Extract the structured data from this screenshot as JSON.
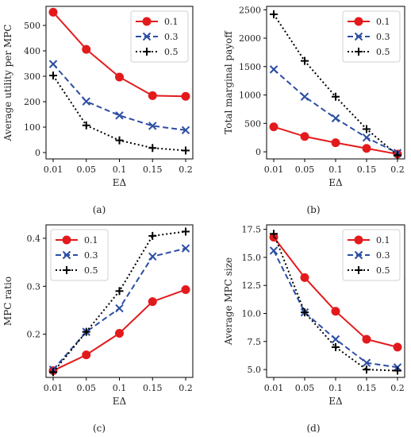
{
  "chart_data": [
    {
      "type": "line",
      "caption": "(a)",
      "xlabel": "EΔ",
      "ylabel": "Average utility per MPC",
      "categories": [
        "0.01",
        "0.05",
        "0.1",
        "0.15",
        "0.2"
      ],
      "yticks": [
        0,
        100,
        200,
        300,
        400,
        500
      ],
      "ylim": [
        -25,
        575
      ],
      "legend_position": "top-right",
      "series": [
        {
          "name": "0.1",
          "color": "#e31a1c",
          "style": "solid",
          "marker": "circle",
          "values": [
            552,
            406,
            297,
            224,
            221
          ]
        },
        {
          "name": "0.3",
          "color": "#2c4ea3",
          "style": "dashed",
          "marker": "x",
          "values": [
            348,
            201,
            146,
            105,
            88
          ]
        },
        {
          "name": "0.5",
          "color": "#000000",
          "style": "dotted",
          "marker": "plus",
          "values": [
            303,
            107,
            48,
            18,
            8
          ]
        }
      ]
    },
    {
      "type": "line",
      "caption": "(b)",
      "xlabel": "EΔ",
      "ylabel": "Total marginal payoff",
      "categories": [
        "0.01",
        "0.05",
        "0.1",
        "0.15",
        "0.2"
      ],
      "yticks": [
        0,
        500,
        1000,
        1500,
        2000,
        2500
      ],
      "ylim": [
        -125,
        2560
      ],
      "legend_position": "top-right",
      "series": [
        {
          "name": "0.1",
          "color": "#e31a1c",
          "style": "solid",
          "marker": "circle",
          "values": [
            440,
            270,
            160,
            60,
            -40
          ]
        },
        {
          "name": "0.3",
          "color": "#2c4ea3",
          "style": "dashed",
          "marker": "x",
          "values": [
            1450,
            970,
            590,
            250,
            -20
          ]
        },
        {
          "name": "0.5",
          "color": "#000000",
          "style": "dotted",
          "marker": "plus",
          "values": [
            2420,
            1600,
            970,
            400,
            -60
          ]
        }
      ]
    },
    {
      "type": "line",
      "caption": "(c)",
      "xlabel": "EΔ",
      "ylabel": "MPC ratio",
      "categories": [
        "0.01",
        "0.05",
        "0.1",
        "0.15",
        "0.2"
      ],
      "yticks": [
        0.2,
        0.3,
        0.4
      ],
      "ylim": [
        0.11,
        0.428
      ],
      "legend_position": "top-left",
      "series": [
        {
          "name": "0.1",
          "color": "#e31a1c",
          "style": "solid",
          "marker": "circle",
          "values": [
            0.124,
            0.157,
            0.202,
            0.268,
            0.293
          ]
        },
        {
          "name": "0.3",
          "color": "#2c4ea3",
          "style": "dashed",
          "marker": "x",
          "values": [
            0.126,
            0.205,
            0.254,
            0.362,
            0.379
          ]
        },
        {
          "name": "0.5",
          "color": "#000000",
          "style": "dotted",
          "marker": "plus",
          "values": [
            0.121,
            0.205,
            0.29,
            0.405,
            0.414
          ]
        }
      ]
    },
    {
      "type": "line",
      "caption": "(d)",
      "xlabel": "EΔ",
      "ylabel": "Average MPC size",
      "categories": [
        "0.01",
        "0.05",
        "0.1",
        "0.15",
        "0.2"
      ],
      "yticks": [
        5.0,
        7.5,
        10.0,
        12.5,
        15.0,
        17.5
      ],
      "ytick_labels": [
        "5.0",
        "7.5",
        "10.0",
        "12.5",
        "15.0",
        "17.5"
      ],
      "ylim": [
        4.3,
        17.9
      ],
      "legend_position": "top-right",
      "series": [
        {
          "name": "0.1",
          "color": "#e31a1c",
          "style": "solid",
          "marker": "circle",
          "values": [
            16.8,
            13.2,
            10.2,
            7.7,
            7.0
          ]
        },
        {
          "name": "0.3",
          "color": "#2c4ea3",
          "style": "dashed",
          "marker": "x",
          "values": [
            15.6,
            10.1,
            7.7,
            5.6,
            5.2
          ]
        },
        {
          "name": "0.5",
          "color": "#000000",
          "style": "dotted",
          "marker": "plus",
          "values": [
            17.1,
            10.1,
            7.0,
            5.0,
            4.9
          ]
        }
      ]
    }
  ]
}
